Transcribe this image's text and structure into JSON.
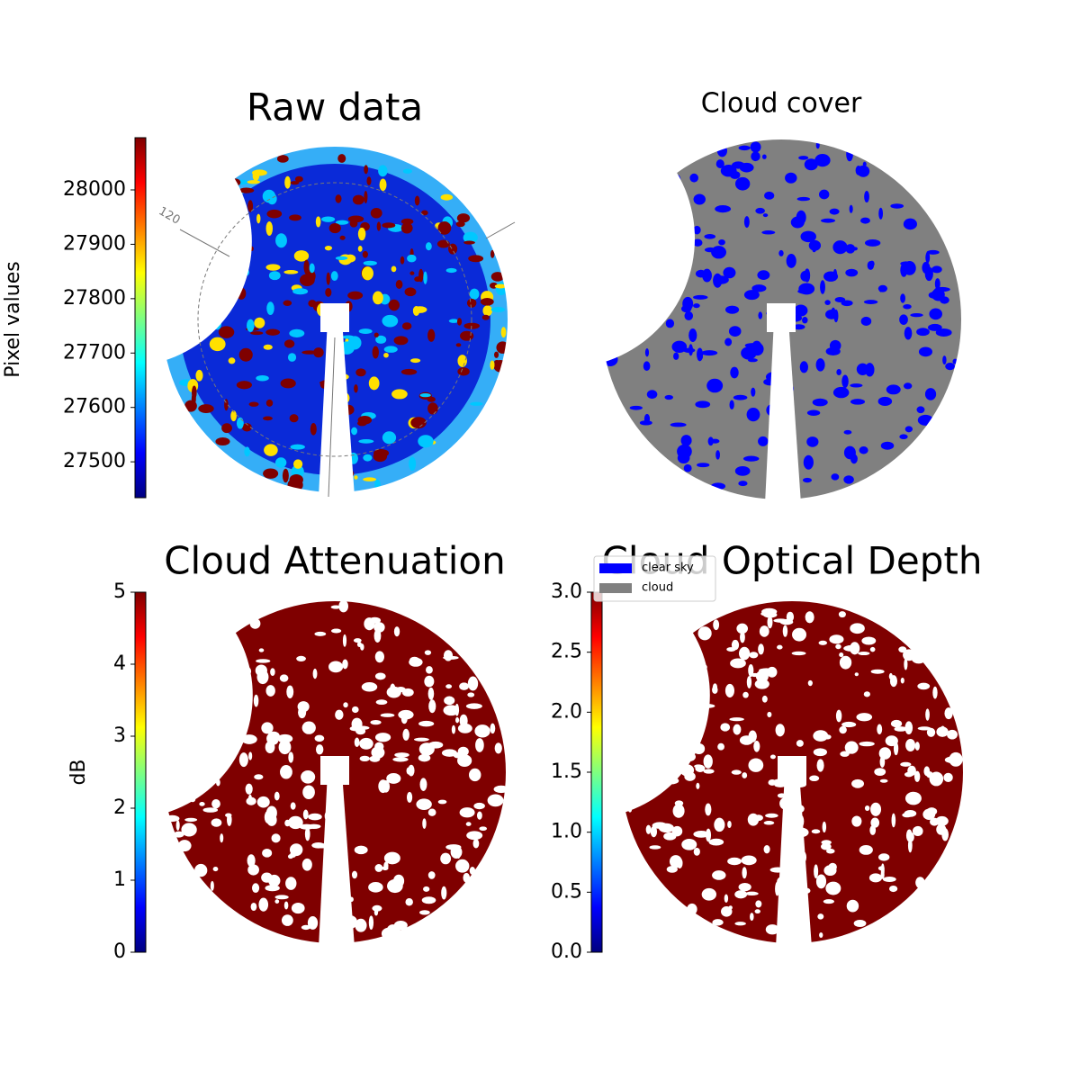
{
  "chart_data": [
    {
      "type": "image",
      "title": "Raw data",
      "colormap": "jet",
      "colorbar_label": "Pixel values",
      "ylim": [
        27434,
        28096
      ],
      "yticks": [
        27500,
        27600,
        27700,
        27800,
        27900,
        28000
      ],
      "annotations": [
        "120"
      ]
    },
    {
      "type": "image",
      "title": "Cloud cover",
      "legend": "upper left",
      "series": [
        {
          "name": "clear sky",
          "color": "#0000ff"
        },
        {
          "name": "cloud",
          "color": "#808080"
        }
      ]
    },
    {
      "type": "image",
      "title": "Cloud Attenuation",
      "colormap": "jet",
      "colorbar_label": "dB",
      "ylim": [
        0,
        5
      ],
      "yticks": [
        0,
        1,
        2,
        3,
        4,
        5
      ]
    },
    {
      "type": "image",
      "title": "Cloud Optical Depth",
      "colormap": "jet",
      "ylim": [
        0,
        3
      ],
      "yticks": [
        {
          "value": 0,
          "label": "0.0"
        },
        0.5,
        {
          "value": 1,
          "label": "1.0"
        },
        1.5,
        {
          "value": 2,
          "label": "2.0"
        },
        2.5,
        {
          "value": 3,
          "label": "3.0"
        }
      ]
    }
  ]
}
